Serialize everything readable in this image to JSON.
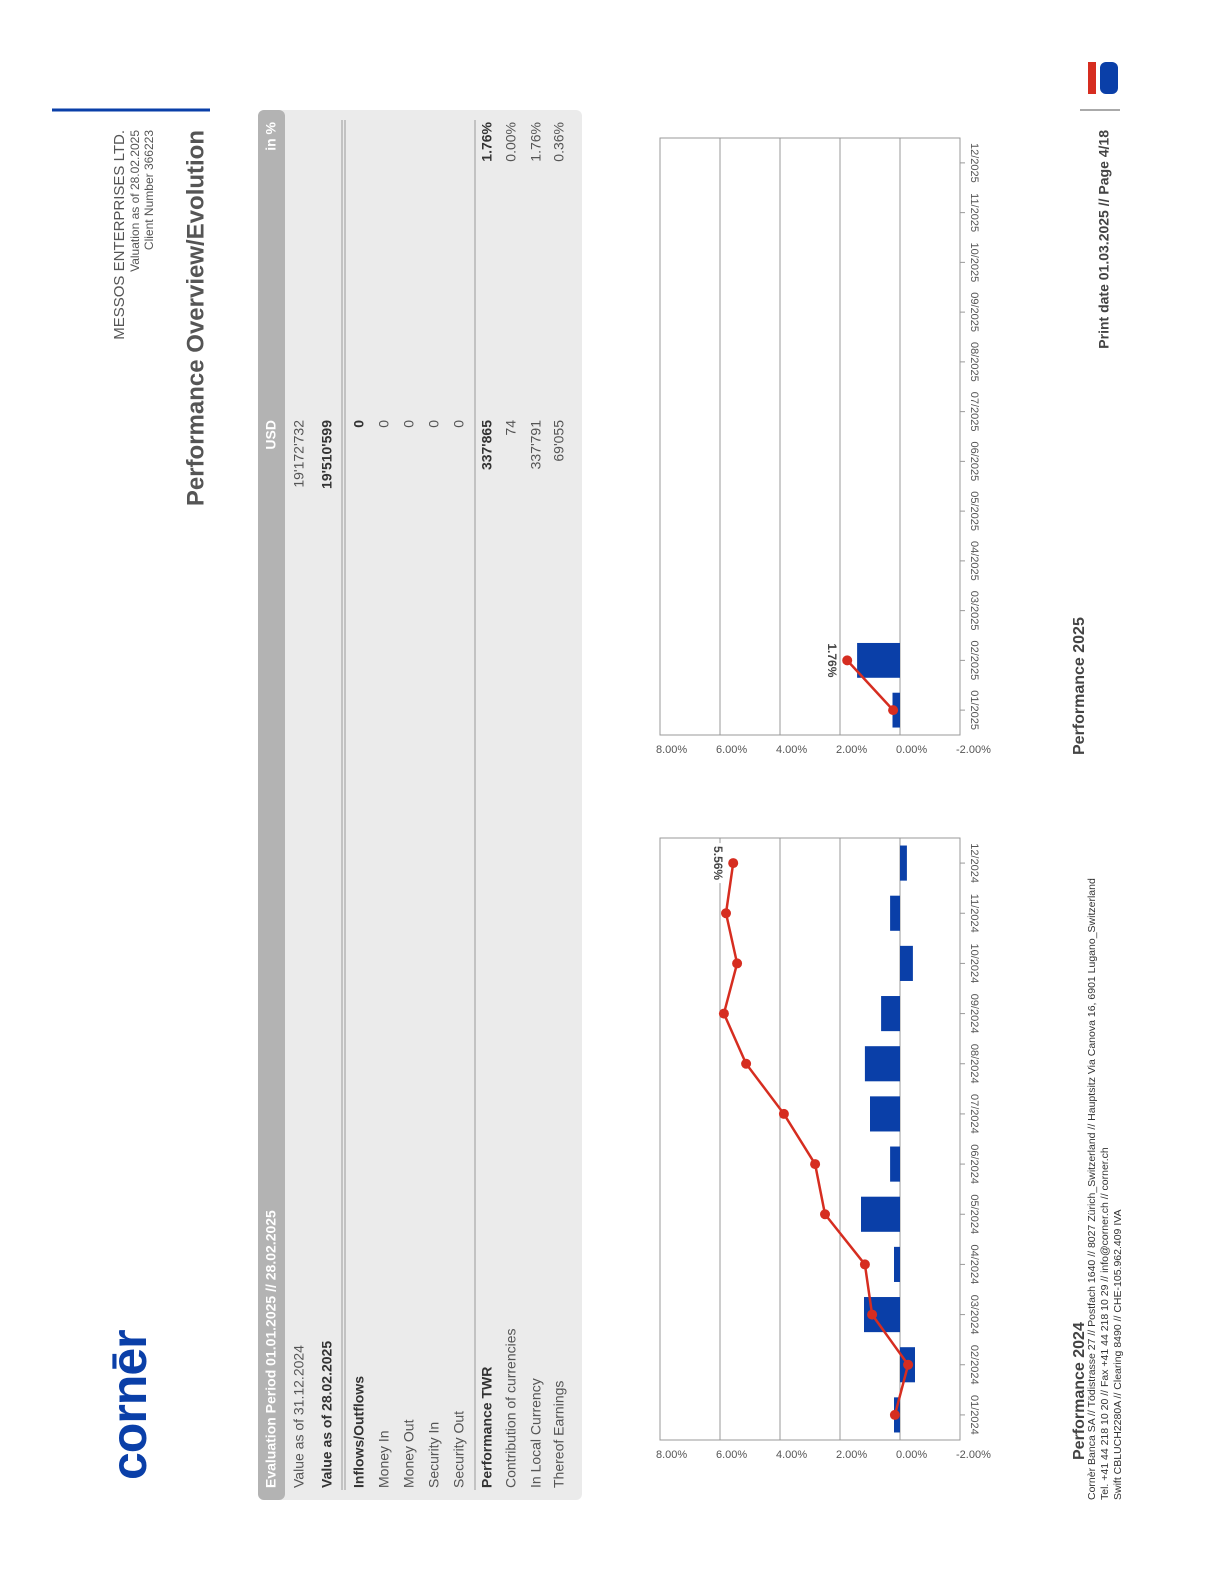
{
  "logo": "cornēr",
  "client": {
    "name": "MESSOS ENTERPRISES LTD.",
    "valuation": "Valuation as of 28.02.2025",
    "number": "Client Number 366223"
  },
  "title": "Performance Overview/Evolution",
  "table": {
    "header": {
      "period": "Evaluation Period 01.01.2025 // 28.02.2025",
      "currency": "USD",
      "unit": "in %"
    },
    "rows": [
      {
        "label": "Value as of 31.12.2024",
        "usd": "19'172'732"
      },
      {
        "label": "Value as of 28.02.2025",
        "usd": "19'510'599",
        "bold": true
      },
      {
        "label": "Inflows/Outflows",
        "usd": "0",
        "bold": true
      },
      {
        "label": "Money In",
        "usd": "0"
      },
      {
        "label": "Money Out",
        "usd": "0"
      },
      {
        "label": "Security In",
        "usd": "0"
      },
      {
        "label": "Security Out",
        "usd": "0"
      },
      {
        "label": "Performance TWR",
        "usd": "337'865",
        "pct": "1.76%",
        "bold": true
      },
      {
        "label": "Contribution of currencies",
        "usd": "74",
        "pct": "0.00%"
      },
      {
        "label": "In Local Currency",
        "usd": "337'791",
        "pct": "1.76%"
      },
      {
        "label": "Thereof Earnings",
        "usd": "69'055",
        "pct": "0.36%"
      }
    ]
  },
  "chart_data": [
    {
      "type": "bar_line",
      "title": "Performance 2024",
      "categories": [
        "01/2024",
        "02/2024",
        "03/2024",
        "04/2024",
        "05/2024",
        "06/2024",
        "07/2024",
        "08/2024",
        "09/2024",
        "10/2024",
        "11/2024",
        "12/2024"
      ],
      "series": [
        {
          "type": "bar",
          "color": "#0a3fa8",
          "values": [
            0.2,
            -0.5,
            1.2,
            0.2,
            1.3,
            0.33,
            1.0,
            1.17,
            0.63,
            -0.43,
            0.33,
            -0.23
          ]
        },
        {
          "type": "line",
          "color": "#d62d20",
          "values": [
            0.17,
            -0.27,
            0.93,
            1.17,
            2.5,
            2.83,
            3.87,
            5.13,
            5.87,
            5.43,
            5.8,
            5.56
          ],
          "value_labels": [
            null,
            null,
            null,
            null,
            null,
            null,
            null,
            null,
            null,
            null,
            null,
            "5.56%"
          ]
        }
      ],
      "ylim": [
        -2,
        8
      ],
      "yticks": [
        {
          "value": -2,
          "label": "-2.00%"
        },
        {
          "value": 0,
          "label": "0.00%"
        },
        {
          "value": 2,
          "label": "2.00%"
        },
        {
          "value": 4,
          "label": "4.00%"
        },
        {
          "value": 6,
          "label": "6.00%"
        },
        {
          "value": 8,
          "label": "8.00%"
        }
      ],
      "grid": true
    },
    {
      "type": "bar_line",
      "title": "Performance 2025",
      "categories": [
        "01/2025",
        "02/2025",
        "03/2025",
        "04/2025",
        "05/2025",
        "06/2025",
        "07/2025",
        "08/2025",
        "09/2025",
        "10/2025",
        "11/2025",
        "12/2025"
      ],
      "series": [
        {
          "type": "bar",
          "color": "#0a3fa8",
          "values": [
            0.25,
            1.43,
            null,
            null,
            null,
            null,
            null,
            null,
            null,
            null,
            null,
            null
          ]
        },
        {
          "type": "line",
          "color": "#d62d20",
          "values": [
            0.23,
            1.76,
            null,
            null,
            null,
            null,
            null,
            null,
            null,
            null,
            null,
            null
          ],
          "value_labels": [
            null,
            "1.76%",
            null,
            null,
            null,
            null,
            null,
            null,
            null,
            null,
            null,
            null
          ]
        }
      ],
      "ylim": [
        -2,
        8
      ],
      "yticks": [
        {
          "value": -2,
          "label": "-2.00%"
        },
        {
          "value": 0,
          "label": "0.00%"
        },
        {
          "value": 2,
          "label": "2.00%"
        },
        {
          "value": 4,
          "label": "4.00%"
        },
        {
          "value": 6,
          "label": "6.00%"
        },
        {
          "value": 8,
          "label": "8.00%"
        }
      ],
      "grid": true
    }
  ],
  "footer": {
    "lines": [
      "Cornèr Banca SA // Tödistrasse 27 // Postfach 1640 // 8027 Zürich_Switzerland // Hauptsitz Via Canova 16, 6901 Lugano_Switzerland",
      "Tel. +41 44 218 10 20 // Fax +41 44 218 10 29 // info@corner.ch // corner.ch",
      "Swift CBLUCH2280A // Clearing 8490 // CHE-105.962.409 IVA"
    ],
    "print": "Print date 01.03.2025 // Page 4/18"
  }
}
